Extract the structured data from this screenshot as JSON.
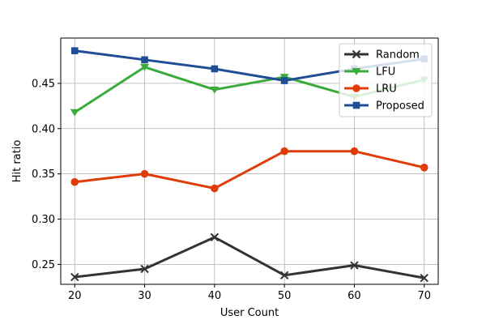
{
  "chart_data": {
    "type": "line",
    "title": "",
    "xlabel": "User Count",
    "ylabel": "Hit ratio",
    "x": [
      20,
      30,
      40,
      50,
      60,
      70
    ],
    "xlim": [
      18,
      72
    ],
    "ylim": [
      0.228,
      0.5
    ],
    "xticks": [
      "20",
      "30",
      "40",
      "50",
      "60",
      "70"
    ],
    "yticks": [
      "0.25",
      "0.30",
      "0.35",
      "0.40",
      "0.45"
    ],
    "grid": true,
    "legend_position": "top-right",
    "series": [
      {
        "name": "Random",
        "color": "#333333",
        "marker": "x",
        "values": [
          0.236,
          0.245,
          0.28,
          0.238,
          0.249,
          0.235
        ]
      },
      {
        "name": "LFU",
        "color": "#3aaa3a",
        "marker": "triangle-down",
        "values": [
          0.418,
          0.468,
          0.443,
          0.457,
          0.435,
          0.454
        ]
      },
      {
        "name": "LRU",
        "color": "#e03c0a",
        "marker": "circle",
        "values": [
          0.341,
          0.35,
          0.334,
          0.375,
          0.375,
          0.357
        ]
      },
      {
        "name": "Proposed",
        "color": "#1f4e96",
        "marker": "square",
        "values": [
          0.486,
          0.476,
          0.466,
          0.453,
          0.466,
          0.477
        ]
      }
    ]
  }
}
